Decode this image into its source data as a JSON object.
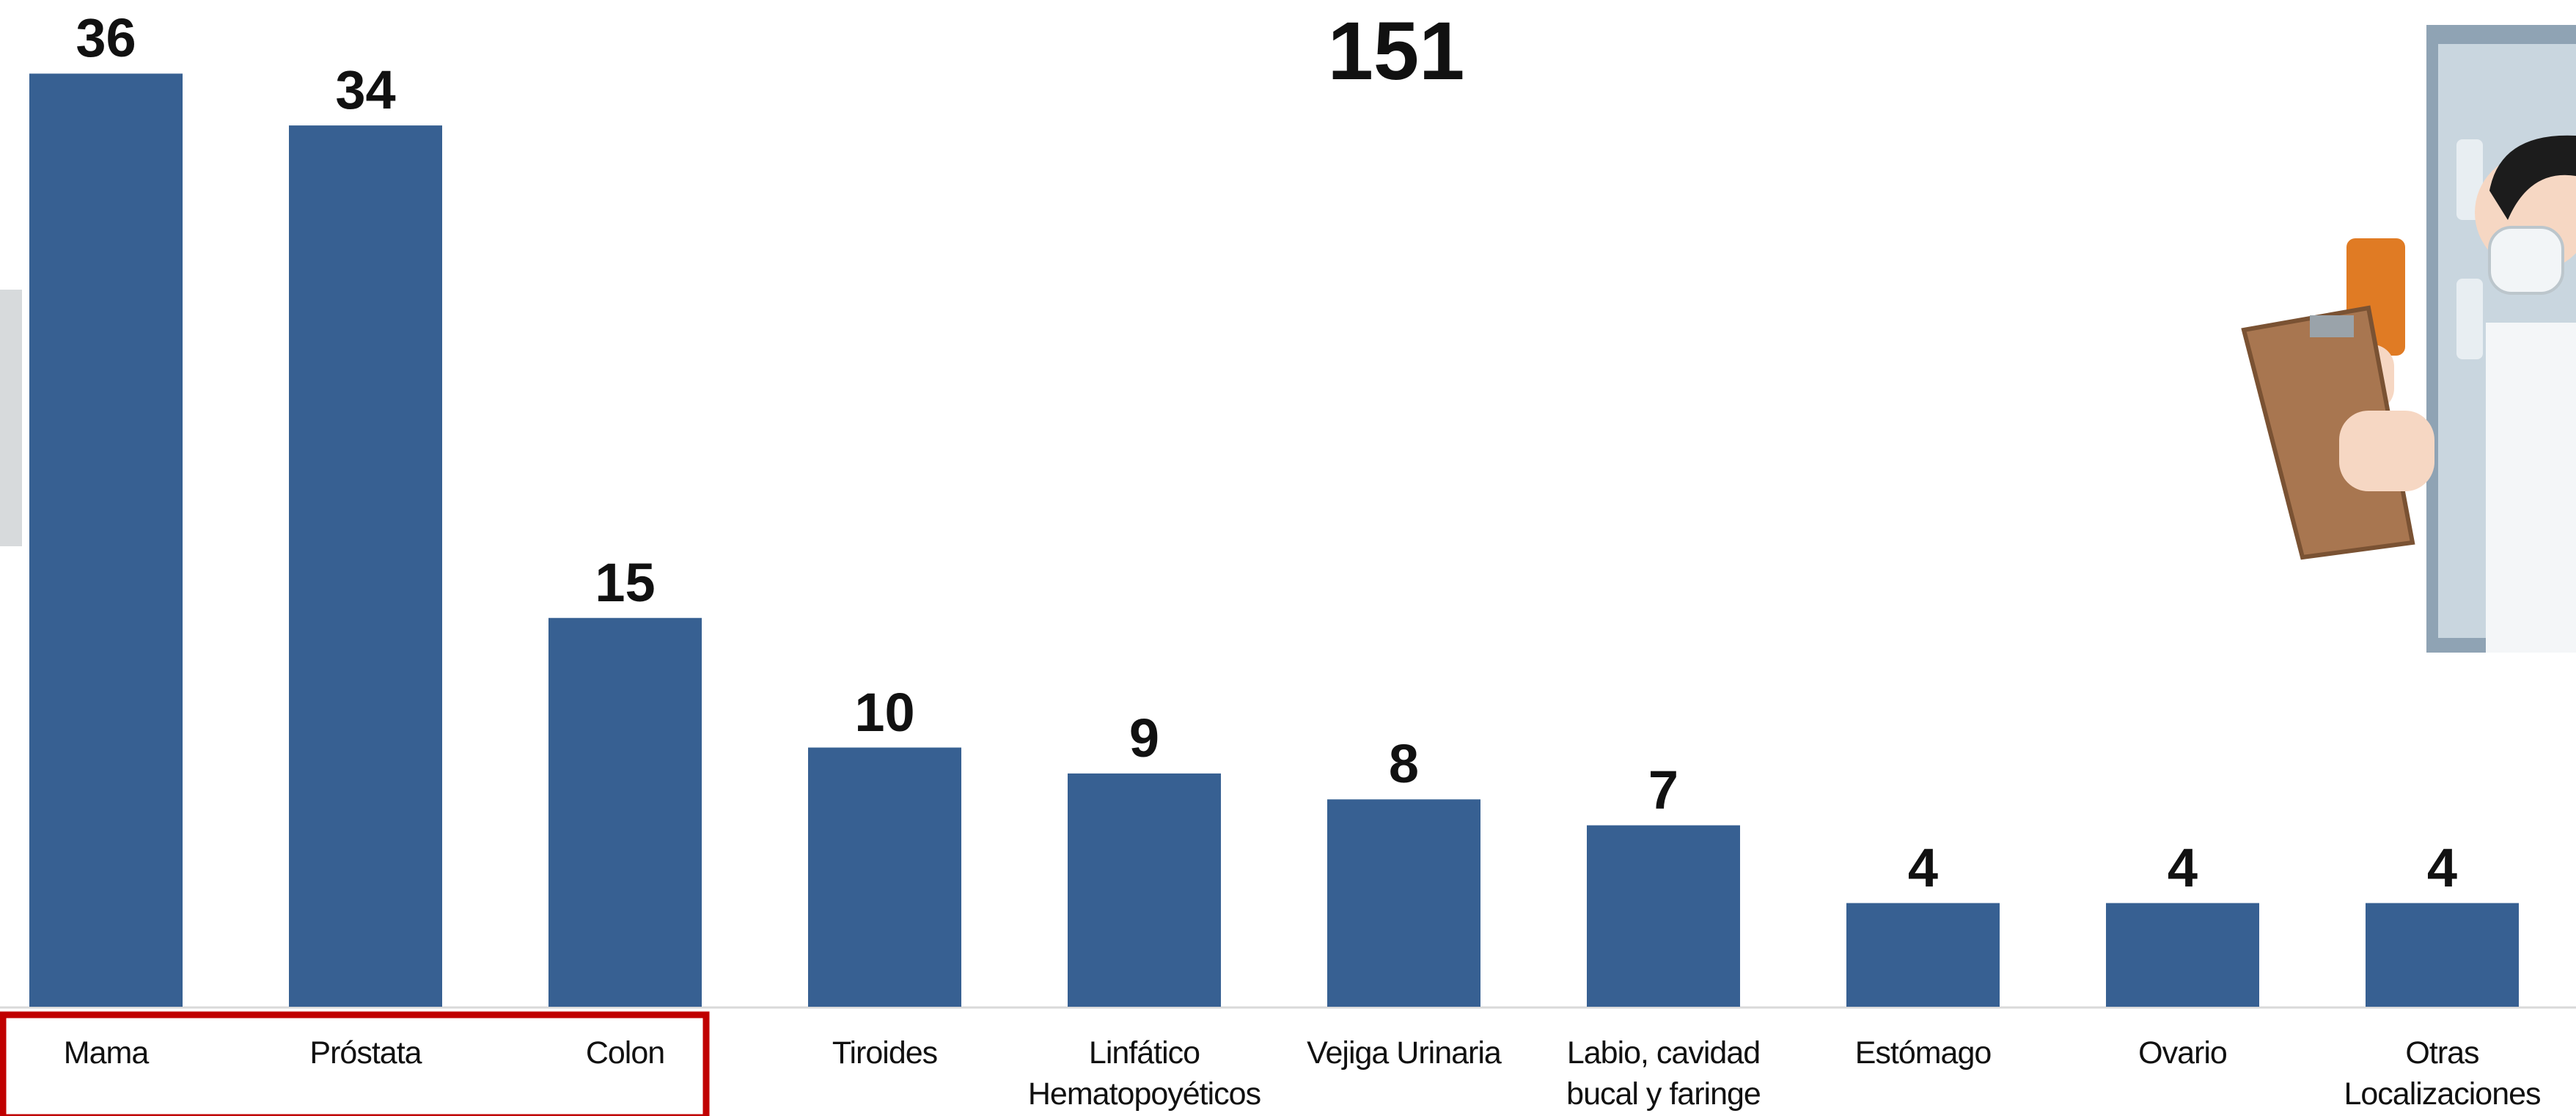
{
  "chart_data": {
    "type": "bar",
    "title": "151",
    "categories": [
      "Mama",
      "Próstata",
      "Colon",
      "Tiroides",
      "Linfático Hematopoyéticos",
      "Vejiga Urinaria",
      "Labio, cavidad bucal y faringe",
      "Estómago",
      "Ovario",
      "Otras Localizaciones"
    ],
    "values": [
      36,
      34,
      15,
      10,
      9,
      8,
      7,
      4,
      4,
      4
    ],
    "color": "#376092"
  }
}
